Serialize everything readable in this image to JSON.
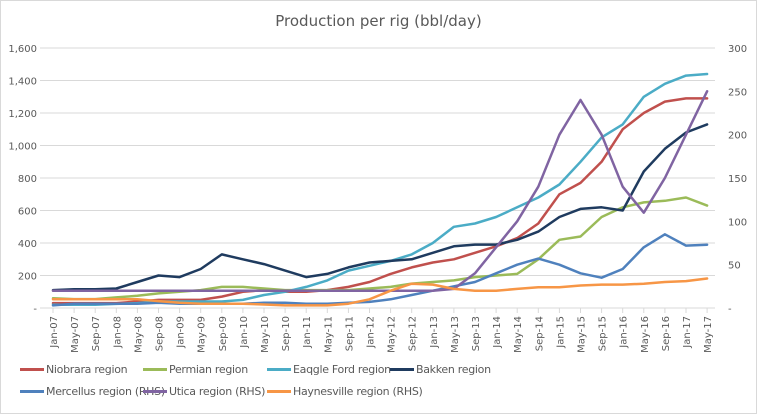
{
  "chart_data": {
    "type": "line",
    "title": "Production per rig (bbl/day)",
    "xlabel": "",
    "ylabel": "",
    "y2label": "",
    "ylim": [
      0,
      1600
    ],
    "y2lim": [
      0,
      300
    ],
    "yticks": [
      "-",
      "200",
      "400",
      "600",
      "800",
      "1,000",
      "1,200",
      "1,400",
      "1,600"
    ],
    "y2ticks": [
      "-",
      "50",
      "100",
      "150",
      "200",
      "250",
      "300"
    ],
    "grid": true,
    "legend_position": "bottom",
    "categories": [
      "Jan-07",
      "May-07",
      "Sep-07",
      "Jan-08",
      "May-08",
      "Sep-08",
      "Jan-09",
      "May-09",
      "Sep-09",
      "Jan-10",
      "May-10",
      "Sep-10",
      "Jan-11",
      "May-11",
      "Sep-11",
      "Jan-12",
      "May-12",
      "Sep-12",
      "Jan-13",
      "May-13",
      "Sep-13",
      "Jan-14",
      "May-14",
      "Sep-14",
      "Jan-15",
      "May-15",
      "Sep-15",
      "Jan-16",
      "May-16",
      "Sep-16",
      "Jan-17",
      "May-17"
    ],
    "series": [
      {
        "name": "Niobrara region",
        "axis": "left",
        "color": "#c0504d",
        "values": [
          30,
          30,
          30,
          30,
          40,
          50,
          50,
          50,
          70,
          100,
          110,
          100,
          100,
          110,
          130,
          160,
          210,
          250,
          280,
          300,
          340,
          380,
          430,
          520,
          700,
          770,
          900,
          1100,
          1200,
          1270,
          1290,
          1290
        ]
      },
      {
        "name": "Permian region",
        "axis": "left",
        "color": "#9bbb59",
        "values": [
          60,
          55,
          55,
          65,
          75,
          90,
          100,
          110,
          130,
          130,
          120,
          110,
          110,
          110,
          110,
          120,
          130,
          150,
          160,
          170,
          190,
          200,
          210,
          300,
          420,
          440,
          560,
          620,
          650,
          660,
          680,
          630
        ]
      },
      {
        "name": "Eagle Ford region",
        "axis": "left",
        "color": "#4bacc6",
        "values": [
          20,
          20,
          20,
          25,
          30,
          40,
          40,
          40,
          40,
          50,
          80,
          100,
          130,
          170,
          230,
          260,
          290,
          330,
          400,
          500,
          520,
          560,
          620,
          680,
          760,
          900,
          1050,
          1130,
          1300,
          1380,
          1430,
          1440
        ]
      },
      {
        "name": "Bakken region",
        "axis": "left",
        "color": "#1f3b5f",
        "values": [
          110,
          115,
          115,
          120,
          160,
          200,
          190,
          240,
          330,
          300,
          270,
          230,
          190,
          210,
          250,
          280,
          290,
          300,
          340,
          380,
          390,
          390,
          420,
          470,
          560,
          610,
          620,
          600,
          840,
          980,
          1080,
          1130
        ]
      },
      {
        "name": "Mercellus region (RHS)",
        "axis": "right",
        "color": "#4f81bd",
        "values": [
          3,
          5,
          5,
          5,
          5,
          6,
          5,
          5,
          5,
          5,
          6,
          6,
          5,
          5,
          6,
          7,
          10,
          15,
          20,
          25,
          30,
          40,
          50,
          57,
          50,
          40,
          35,
          45,
          70,
          85,
          72,
          73
        ]
      },
      {
        "name": "Utica region (RHS)",
        "axis": "right",
        "color": "#8064a2",
        "values": [
          20,
          20,
          20,
          20,
          20,
          20,
          20,
          20,
          20,
          20,
          20,
          20,
          20,
          20,
          20,
          20,
          20,
          20,
          20,
          22,
          40,
          70,
          100,
          140,
          200,
          240,
          200,
          140,
          110,
          150,
          200,
          250
        ]
      },
      {
        "name": "Haynesville region (RHS)",
        "axis": "right",
        "color": "#f79646",
        "values": [
          10,
          10,
          10,
          10,
          10,
          8,
          6,
          5,
          5,
          5,
          4,
          3,
          3,
          3,
          5,
          10,
          20,
          28,
          27,
          22,
          20,
          20,
          22,
          24,
          24,
          26,
          27,
          27,
          28,
          30,
          31,
          34
        ]
      }
    ]
  },
  "legend": {
    "items": [
      {
        "label": "Niobrara region",
        "color": "#c0504d"
      },
      {
        "label": "Permian region",
        "color": "#9bbb59"
      },
      {
        "label": "Eaqgle Ford region",
        "color": "#4bacc6"
      },
      {
        "label": "Bakken region",
        "color": "#1f3b5f"
      },
      {
        "label": "Mercellus region (RHS)",
        "color": "#4f81bd"
      },
      {
        "label": "Utica region (RHS)",
        "color": "#8064a2"
      },
      {
        "label": "Haynesville region (RHS)",
        "color": "#f79646"
      }
    ]
  }
}
